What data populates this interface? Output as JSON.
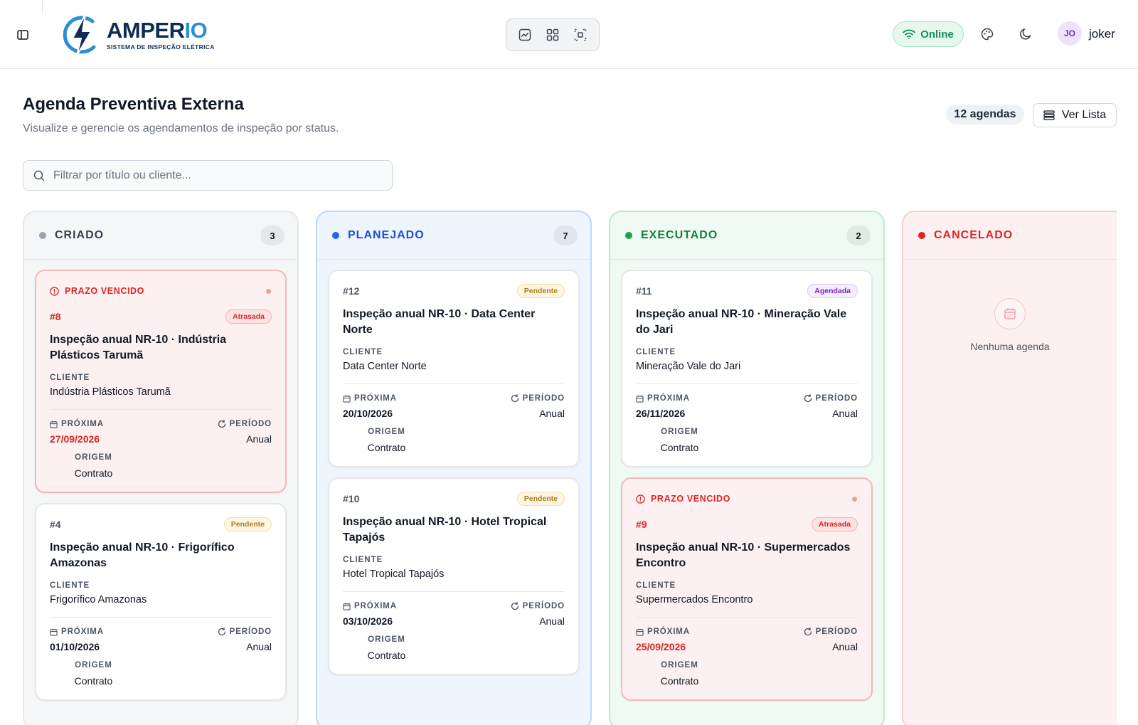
{
  "header": {
    "brand_name_main": "AMPER",
    "brand_name_accent": "IO",
    "brand_tagline": "SISTEMA DE INSPEÇÃO ELÉTRICA",
    "status": "Online",
    "avatar_initials": "JO",
    "username": "joker",
    "icons": [
      "sidebar-toggle-icon",
      "chart-view-icon",
      "grid-view-icon",
      "focus-view-icon",
      "wifi-icon",
      "palette-icon",
      "moon-icon"
    ]
  },
  "page": {
    "title": "Agenda Preventiva Externa",
    "subtitle": "Visualize e gerencie os agendamentos de inspeção por status.",
    "count_label": "12 agendas",
    "list_button": "Ver Lista"
  },
  "search": {
    "placeholder": "Filtrar por título ou cliente...",
    "value": ""
  },
  "labels": {
    "overdue": "PRAZO VENCIDO",
    "client": "CLIENTE",
    "next": "PRÓXIMA",
    "period": "PERÍODO",
    "origin": "ORIGEM"
  },
  "columns": [
    {
      "name": "CRIADO",
      "count": "3",
      "color": "#9ca3af",
      "cards": [
        {
          "overdue": true,
          "id": "#8",
          "badge": "Atrasada",
          "title": "Inspeção anual NR-10 · Indústria Plásticos Tarumã",
          "client": "Indústria Plásticos Tarumã",
          "next": "27/09/2026",
          "period": "Anual",
          "origin": "Contrato"
        },
        {
          "overdue": false,
          "id": "#4",
          "badge": "Pendente",
          "title": "Inspeção anual NR-10 · Frigorífico Amazonas",
          "client": "Frigorífico Amazonas",
          "next": "01/10/2026",
          "period": "Anual",
          "origin": "Contrato"
        }
      ]
    },
    {
      "name": "PLANEJADO",
      "count": "7",
      "color": "#2563eb",
      "cards": [
        {
          "overdue": false,
          "id": "#12",
          "badge": "Pendente",
          "title": "Inspeção anual NR-10 · Data Center Norte",
          "client": "Data Center Norte",
          "next": "20/10/2026",
          "period": "Anual",
          "origin": "Contrato"
        },
        {
          "overdue": false,
          "id": "#10",
          "badge": "Pendente",
          "title": "Inspeção anual NR-10 · Hotel Tropical Tapajós",
          "client": "Hotel Tropical Tapajós",
          "next": "03/10/2026",
          "period": "Anual",
          "origin": "Contrato"
        }
      ]
    },
    {
      "name": "EXECUTADO",
      "count": "2",
      "color": "#16a34a",
      "cards": [
        {
          "overdue": false,
          "id": "#11",
          "badge": "Agendada",
          "title": "Inspeção anual NR-10 · Mineração Vale do Jari",
          "client": "Mineração Vale do Jari",
          "next": "26/11/2026",
          "period": "Anual",
          "origin": "Contrato"
        },
        {
          "overdue": true,
          "id": "#9",
          "badge": "Atrasada",
          "title": "Inspeção anual NR-10 · Supermercados Encontro",
          "client": "Supermercados Encontro",
          "next": "25/09/2026",
          "period": "Anual",
          "origin": "Contrato"
        }
      ]
    },
    {
      "name": "CANCELADO",
      "color": "#dc2626",
      "empty_text": "Nenhuma agenda"
    }
  ]
}
